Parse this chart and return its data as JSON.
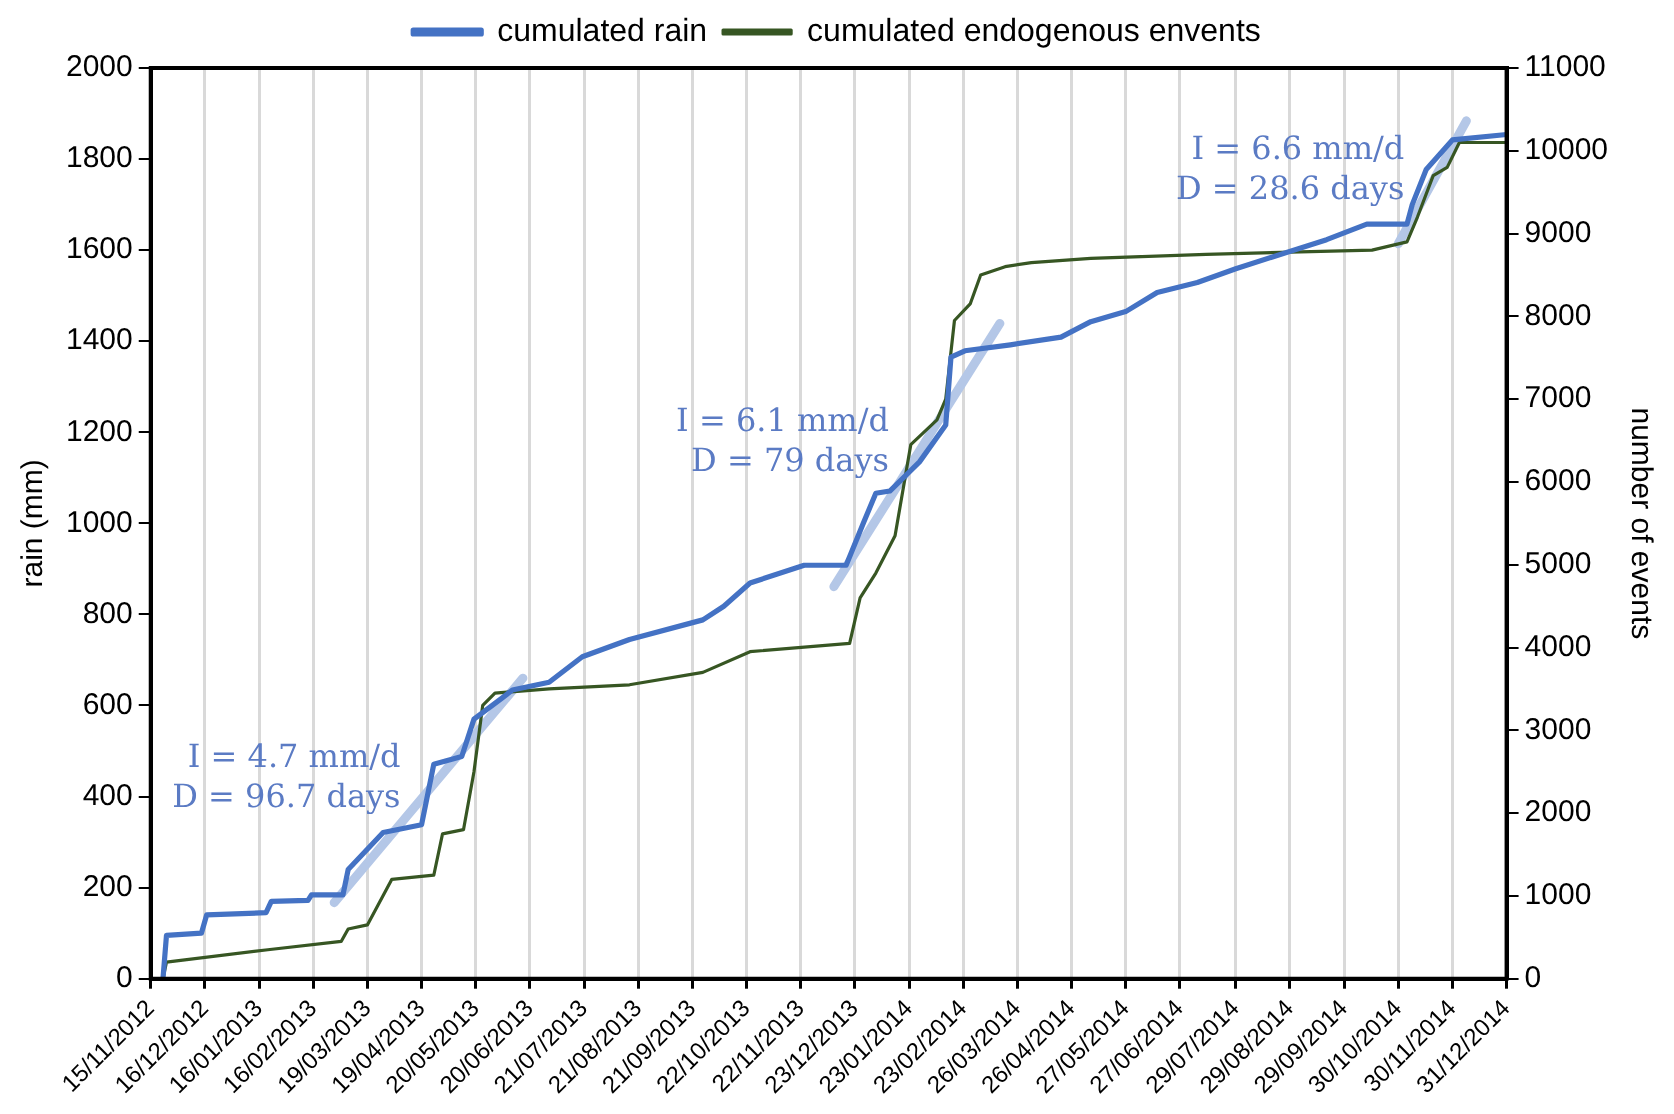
{
  "chart_data": {
    "type": "line",
    "ylabel": "rain (mm)",
    "y2label": "number of events",
    "xlim": [
      "2012-11-15",
      "2014-12-31"
    ],
    "xticks": [
      {
        "value": "2012-11-15",
        "label": "15/11/2012"
      },
      {
        "value": "2012-12-16",
        "label": "16/12/2012"
      },
      {
        "value": "2013-01-16",
        "label": "16/01/2013"
      },
      {
        "value": "2013-02-16",
        "label": "16/02/2013"
      },
      {
        "value": "2013-03-19",
        "label": "19/03/2013"
      },
      {
        "value": "2013-04-19",
        "label": "19/04/2013"
      },
      {
        "value": "2013-05-20",
        "label": "20/05/2013"
      },
      {
        "value": "2013-06-20",
        "label": "20/06/2013"
      },
      {
        "value": "2013-07-21",
        "label": "21/07/2013"
      },
      {
        "value": "2013-08-21",
        "label": "21/08/2013"
      },
      {
        "value": "2013-09-21",
        "label": "21/09/2013"
      },
      {
        "value": "2013-10-22",
        "label": "22/10/2013"
      },
      {
        "value": "2013-11-22",
        "label": "22/11/2013"
      },
      {
        "value": "2013-12-23",
        "label": "23/12/2013"
      },
      {
        "value": "2014-01-23",
        "label": "23/01/2014"
      },
      {
        "value": "2014-02-23",
        "label": "23/02/2014"
      },
      {
        "value": "2014-03-26",
        "label": "26/03/2014"
      },
      {
        "value": "2014-04-26",
        "label": "26/04/2014"
      },
      {
        "value": "2014-05-27",
        "label": "27/05/2014"
      },
      {
        "value": "2014-06-27",
        "label": "27/06/2014"
      },
      {
        "value": "2014-07-29",
        "label": "29/07/2014"
      },
      {
        "value": "2014-08-29",
        "label": "29/08/2014"
      },
      {
        "value": "2014-09-29",
        "label": "29/09/2014"
      },
      {
        "value": "2014-10-30",
        "label": "30/10/2014"
      },
      {
        "value": "2014-11-30",
        "label": "30/11/2014"
      },
      {
        "value": "2014-12-31",
        "label": "31/12/2014"
      }
    ],
    "ylim": [
      0,
      2000
    ],
    "yticks": [
      0,
      200,
      400,
      600,
      800,
      1000,
      1200,
      1400,
      1600,
      1800,
      2000
    ],
    "y2lim": [
      0,
      11000
    ],
    "y2ticks": [
      0,
      1000,
      2000,
      3000,
      4000,
      5000,
      6000,
      7000,
      8000,
      9000,
      10000,
      11000
    ],
    "grid": "x",
    "legend": "top",
    "marker": "none",
    "series": [
      {
        "name": "cumulated rain",
        "color": "#4472c4",
        "x": [
          "2012-11-22",
          "2012-11-24",
          "2012-12-14",
          "2012-12-17",
          "2013-01-20",
          "2013-01-23",
          "2013-02-13",
          "2013-02-15",
          "2013-03-05",
          "2013-03-08",
          "2013-03-28",
          "2013-04-19",
          "2013-04-26",
          "2013-05-12",
          "2013-05-19",
          "2013-06-04",
          "2013-06-10",
          "2013-07-01",
          "2013-07-20",
          "2013-08-16",
          "2013-09-27",
          "2013-10-09",
          "2013-10-24",
          "2013-11-24",
          "2013-12-18",
          "2013-12-28",
          "2014-01-04",
          "2014-01-12",
          "2014-01-29",
          "2014-02-13",
          "2014-02-16",
          "2014-02-24",
          "2014-03-22",
          "2014-04-20",
          "2014-05-07",
          "2014-05-27",
          "2014-06-14",
          "2014-07-07",
          "2014-07-29",
          "2014-08-19",
          "2014-09-19",
          "2014-10-12",
          "2014-11-04",
          "2014-11-07",
          "2014-11-15",
          "2014-11-30",
          "2014-12-31"
        ],
        "values": [
          0,
          95,
          100,
          140,
          145,
          170,
          172,
          184,
          184,
          240,
          321,
          338,
          471,
          488,
          570,
          616,
          634,
          651,
          707,
          745,
          788,
          818,
          869,
          908,
          908,
          1002,
          1066,
          1071,
          1135,
          1216,
          1365,
          1379,
          1392,
          1409,
          1443,
          1465,
          1507,
          1529,
          1559,
          1585,
          1623,
          1657,
          1657,
          1700,
          1777,
          1842,
          1854
        ]
      },
      {
        "name": "cumulated endogenous envents",
        "color": "#375623",
        "axis": "y2",
        "x": [
          "2012-11-22",
          "2012-11-24",
          "2013-01-21",
          "2013-03-04",
          "2013-03-08",
          "2013-03-19",
          "2013-04-02",
          "2013-04-26",
          "2013-05-01",
          "2013-05-13",
          "2013-05-19",
          "2013-05-24",
          "2013-05-31",
          "2013-07-01",
          "2013-08-16",
          "2013-09-27",
          "2013-10-24",
          "2013-12-20",
          "2013-12-26",
          "2014-01-04",
          "2014-01-15",
          "2014-01-24",
          "2014-02-08",
          "2014-02-13",
          "2014-02-18",
          "2014-02-27",
          "2014-03-05",
          "2014-03-19",
          "2014-04-03",
          "2014-05-07",
          "2014-07-12",
          "2014-10-15",
          "2014-11-04",
          "2014-11-10",
          "2014-11-19",
          "2014-11-27",
          "2014-12-04",
          "2014-12-31"
        ],
        "values": [
          0,
          200,
          350,
          450,
          600,
          650,
          1200,
          1250,
          1750,
          1800,
          2500,
          3300,
          3450,
          3500,
          3550,
          3700,
          3950,
          4050,
          4600,
          4900,
          5350,
          6450,
          6750,
          7000,
          7950,
          8150,
          8500,
          8600,
          8650,
          8700,
          8750,
          8800,
          8900,
          9200,
          9700,
          9800,
          10100,
          10100
        ]
      },
      {
        "color": "#b4c7e7",
        "x": [
          "2013-02-28",
          "2013-06-16"
        ],
        "values": [
          167,
          660
        ]
      },
      {
        "color": "#b4c7e7",
        "x": [
          "2013-12-11",
          "2014-03-16"
        ],
        "values": [
          861,
          1439
        ]
      },
      {
        "color": "#b4c7e7",
        "x": [
          "2014-10-30",
          "2014-12-08"
        ],
        "values": [
          1614,
          1884
        ]
      }
    ],
    "annotations": [
      "I = 4.7 mm/d",
      "D = 96.7 days",
      "I = 6.1 mm/d",
      "D = 79 days",
      "I = 6.6 mm/d",
      "D = 28.6 days"
    ]
  }
}
